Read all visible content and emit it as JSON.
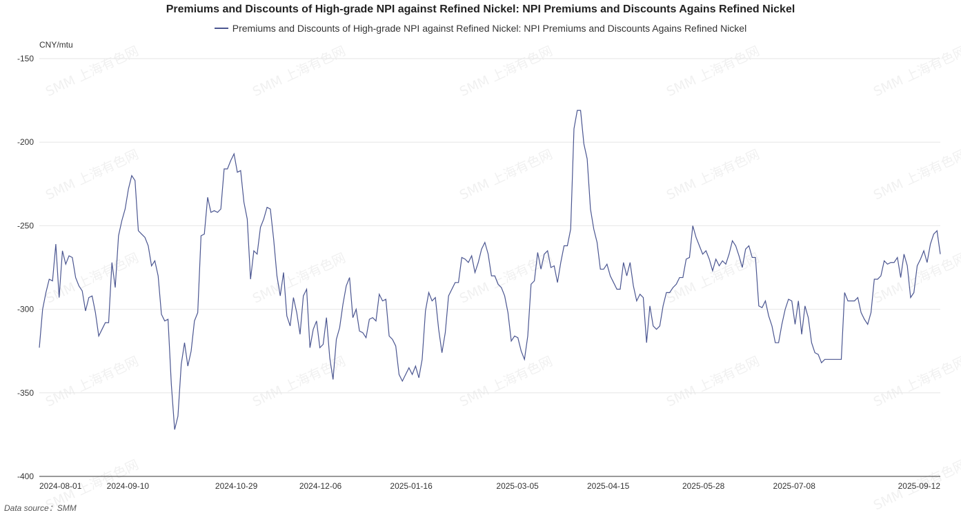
{
  "title": "Premiums and Discounts of High-grade NPI against Refined Nickel: NPI Premiums and Discounts Agains Refined Nickel",
  "legend_label": "Premiums and Discounts of High-grade NPI against Refined Nickel: NPI Premiums and Discounts Agains Refined Nickel",
  "unit_label": "CNY/mtu",
  "source_text": "Data source：SMM",
  "watermark_text": "SMM 上海有色网",
  "colors": {
    "series": "#4a5590",
    "grid": "#e6e6e6",
    "axis": "#333333"
  },
  "chart_data": {
    "type": "line",
    "title": "Premiums and Discounts of High-grade NPI against Refined Nickel: NPI Premiums and Discounts Agains Refined Nickel",
    "ylabel": "CNY/mtu",
    "ylim": [
      -400,
      -150
    ],
    "yticks": [
      -150,
      -200,
      -250,
      -300,
      -350,
      -400
    ],
    "xtick_labels": [
      "2024-08-01",
      "2024-09-10",
      "2024-10-29",
      "2024-12-06",
      "2025-01-16",
      "2025-03-05",
      "2025-04-15",
      "2025-05-28",
      "2025-07-08",
      "2025-09-12"
    ],
    "grid": true,
    "legend": "top-center",
    "series": [
      {
        "name": "Premiums and Discounts of High-grade NPI against Refined Nickel: NPI Premiums and Discounts Agains Refined Nickel",
        "values": [
          -323,
          -300,
          -290,
          -282,
          -283,
          -261,
          -293,
          -265,
          -273,
          -268,
          -269,
          -281,
          -286,
          -289,
          -301,
          -293,
          -292,
          -302,
          -316,
          -312,
          -308,
          -308,
          -272,
          -287,
          -256,
          -247,
          -240,
          -228,
          -220,
          -223,
          -253,
          -255,
          -257,
          -262,
          -274,
          -271,
          -280,
          -303,
          -307,
          -306,
          -345,
          -372,
          -364,
          -333,
          -320,
          -334,
          -325,
          -307,
          -302,
          -256,
          -255,
          -233,
          -242,
          -241,
          -242,
          -240,
          -216,
          -216,
          -211,
          -207,
          -218,
          -217,
          -236,
          -246,
          -282,
          -265,
          -267,
          -251,
          -246,
          -239,
          -240,
          -258,
          -280,
          -292,
          -278,
          -304,
          -310,
          -293,
          -302,
          -315,
          -292,
          -288,
          -323,
          -312,
          -307,
          -323,
          -321,
          -305,
          -329,
          -342,
          -318,
          -311,
          -297,
          -286,
          -281,
          -305,
          -300,
          -313,
          -314,
          -317,
          -306,
          -305,
          -307,
          -291,
          -295,
          -294,
          -316,
          -318,
          -322,
          -339,
          -343,
          -339,
          -335,
          -339,
          -334,
          -341,
          -330,
          -301,
          -290,
          -295,
          -293,
          -312,
          -326,
          -314,
          -292,
          -288,
          -284,
          -284,
          -269,
          -270,
          -272,
          -268,
          -278,
          -272,
          -264,
          -260,
          -267,
          -280,
          -280,
          -285,
          -287,
          -292,
          -302,
          -319,
          -316,
          -317,
          -325,
          -330,
          -316,
          -285,
          -283,
          -266,
          -276,
          -267,
          -265,
          -275,
          -274,
          -284,
          -272,
          -262,
          -262,
          -252,
          -192,
          -181,
          -181,
          -201,
          -210,
          -240,
          -252,
          -260,
          -276,
          -276,
          -273,
          -280,
          -284,
          -288,
          -288,
          -272,
          -280,
          -272,
          -286,
          -295,
          -291,
          -293,
          -320,
          -298,
          -310,
          -312,
          -310,
          -298,
          -290,
          -290,
          -287,
          -285,
          -281,
          -281,
          -270,
          -269,
          -250,
          -257,
          -262,
          -267,
          -265,
          -270,
          -277,
          -270,
          -274,
          -271,
          -273,
          -267,
          -259,
          -262,
          -268,
          -275,
          -264,
          -262,
          -269,
          -269,
          -298,
          -299,
          -295,
          -304,
          -310,
          -320,
          -320,
          -309,
          -300,
          -294,
          -295,
          -309,
          -295,
          -315,
          -298,
          -305,
          -320,
          -326,
          -327,
          -332,
          -330,
          -330,
          -330,
          -330,
          -330,
          -330,
          -290,
          -295,
          -295,
          -295,
          -293,
          -302,
          -306,
          -309,
          -302,
          -282,
          -282,
          -280,
          -271,
          -273,
          -272,
          -272,
          -269,
          -281,
          -267,
          -274,
          -293,
          -290,
          -274,
          -270,
          -265,
          -272,
          -261,
          -255,
          -253,
          -267
        ]
      }
    ]
  }
}
